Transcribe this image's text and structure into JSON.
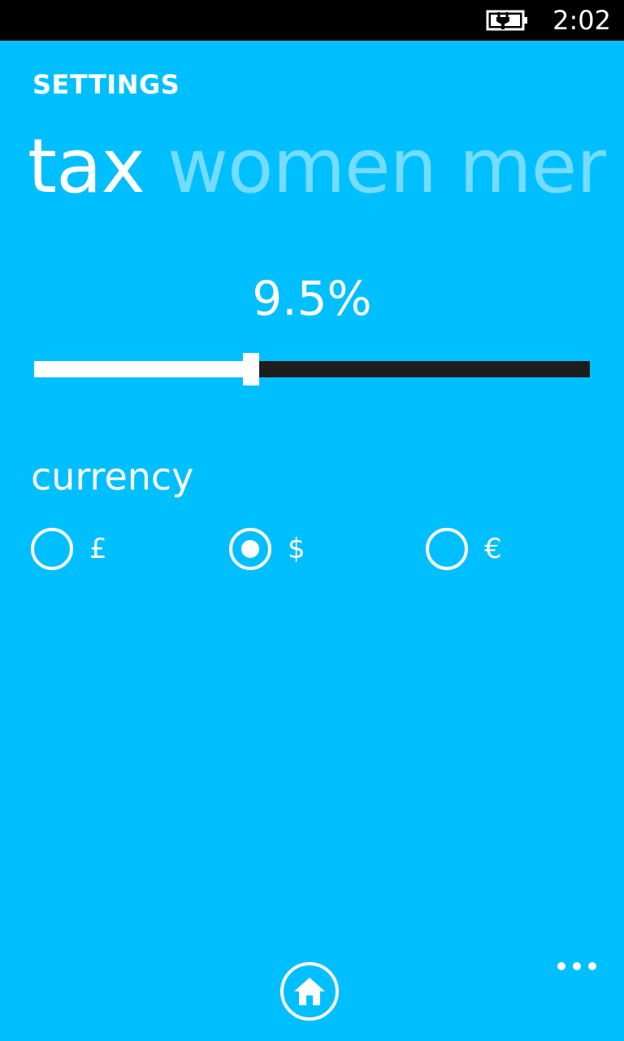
{
  "status_bar": {
    "time": "2:02",
    "battery_icon": "battery-charging-icon"
  },
  "header": {
    "title": "SETTINGS"
  },
  "pivot": {
    "items": [
      {
        "label": "tax",
        "active": true
      },
      {
        "label": "women",
        "active": false
      },
      {
        "label": "men",
        "active": false
      }
    ]
  },
  "tax": {
    "value_label": "9.5%",
    "slider_fraction": 0.39
  },
  "currency": {
    "label": "currency",
    "options": [
      {
        "label": "£",
        "selected": false
      },
      {
        "label": "$",
        "selected": true
      },
      {
        "label": "€",
        "selected": false
      }
    ]
  },
  "app_bar": {
    "home_icon": "home-icon",
    "more_icon": "ellipsis-icon"
  },
  "colors": {
    "background": "#00BFFF",
    "foreground": "#FFFFFF",
    "slider_track": "#1D1D1D",
    "status_bar": "#000000"
  }
}
